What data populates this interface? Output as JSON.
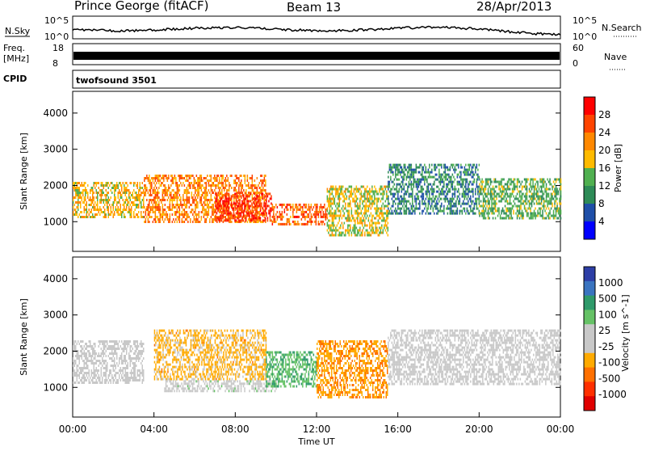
{
  "header": {
    "station": "Prince George (fitACF)",
    "beam": "Beam 13",
    "date": "28/Apr/2013"
  },
  "labels": {
    "n_sky": "N.Sky",
    "n_search": "N.Search",
    "freq_line1": "Freq.",
    "freq_line2": "[MHz]",
    "nave": "Nave",
    "cpid": "CPID",
    "cpid_value": "twofsound 3501",
    "noise_left_ticks": [
      "10^5",
      "10^0"
    ],
    "noise_right_ticks": [
      "10^5",
      "10^0"
    ],
    "freq_left_ticks": [
      "18",
      "8"
    ],
    "freq_right_ticks": [
      "60",
      "0"
    ]
  },
  "colors": {
    "noise_trace": "#000000",
    "freq_band": "#000000",
    "power_bar": [
      "#ff0000",
      "#ff4400",
      "#ff8800",
      "#ffbb00",
      "#50b050",
      "#2e8b57",
      "#1f4fa8",
      "#0000ff"
    ],
    "velocity_bar": [
      "#2d3ea6",
      "#3a74c0",
      "#2f9a6a",
      "#66c266",
      "#c8c8c8",
      "#c8c8c8",
      "#ffaa00",
      "#ff7000",
      "#ff3000",
      "#e00000"
    ]
  },
  "chart_data": [
    {
      "type": "heatmap",
      "title": "",
      "xlabel": "Time UT",
      "ylabel": "Slant Range [km]",
      "xlim": [
        "00:00",
        "24:00"
      ],
      "ylim": [
        180,
        4600
      ],
      "x_ticks": [
        "00:00",
        "04:00",
        "08:00",
        "12:00",
        "16:00",
        "20:00",
        "00:00"
      ],
      "y_ticks": [
        1000,
        2000,
        3000,
        4000
      ],
      "colorbar": {
        "label": "Power [dB]",
        "ticks": [
          "28",
          "24",
          "20",
          "16",
          "12",
          "8",
          "4"
        ],
        "range": [
          0,
          30
        ]
      },
      "echo_regions": [
        {
          "t_start": 0.0,
          "t_end": 3.5,
          "range_low": 1100,
          "range_high": 2100,
          "level": 18
        },
        {
          "t_start": 3.5,
          "t_end": 9.5,
          "range_low": 1000,
          "range_high": 2300,
          "level": 22
        },
        {
          "t_start": 7.0,
          "t_end": 9.8,
          "range_low": 1000,
          "range_high": 1800,
          "level": 28
        },
        {
          "t_start": 9.8,
          "t_end": 12.5,
          "range_low": 900,
          "range_high": 1500,
          "level": 24
        },
        {
          "t_start": 12.5,
          "t_end": 15.5,
          "range_low": 600,
          "range_high": 2000,
          "level": 16
        },
        {
          "t_start": 15.5,
          "t_end": 20.0,
          "range_low": 1200,
          "range_high": 2600,
          "level": 8
        },
        {
          "t_start": 20.0,
          "t_end": 24.0,
          "range_low": 1100,
          "range_high": 2200,
          "level": 12
        }
      ]
    },
    {
      "type": "heatmap",
      "title": "",
      "xlabel": "Time UT",
      "ylabel": "Slant Range [km]",
      "xlim": [
        "00:00",
        "24:00"
      ],
      "ylim": [
        180,
        4600
      ],
      "x_ticks": [
        "00:00",
        "04:00",
        "08:00",
        "12:00",
        "16:00",
        "20:00",
        "00:00"
      ],
      "y_ticks": [
        1000,
        2000,
        3000,
        4000
      ],
      "colorbar": {
        "label": "Velocity [m s^-1]",
        "ticks": [
          "1000",
          "500",
          "100",
          "25",
          "-25",
          "-100",
          "-500",
          "-1000"
        ],
        "range": [
          -1000,
          1000
        ]
      },
      "echo_regions": [
        {
          "t_start": 0.0,
          "t_end": 3.5,
          "range_low": 1100,
          "range_high": 2300,
          "level": 0
        },
        {
          "t_start": 4.0,
          "t_end": 9.5,
          "range_low": 1200,
          "range_high": 2600,
          "level": -300
        },
        {
          "t_start": 4.5,
          "t_end": 10.0,
          "range_low": 900,
          "range_high": 1200,
          "level": 100
        },
        {
          "t_start": 9.5,
          "t_end": 12.0,
          "range_low": 1000,
          "range_high": 2000,
          "level": 400
        },
        {
          "t_start": 12.0,
          "t_end": 15.5,
          "range_low": 700,
          "range_high": 2300,
          "level": -400
        },
        {
          "t_start": 15.5,
          "t_end": 24.0,
          "range_low": 1100,
          "range_high": 2600,
          "level": 0
        }
      ]
    }
  ]
}
